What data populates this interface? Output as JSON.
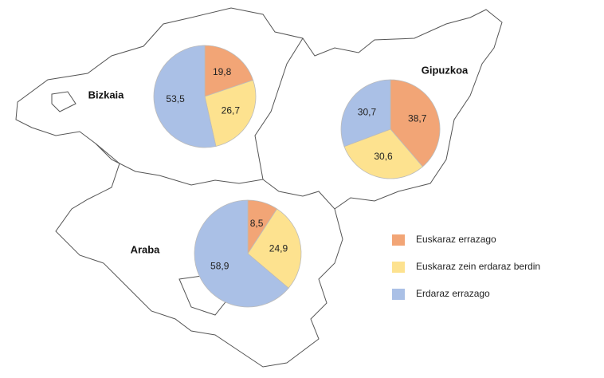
{
  "chart_data": [
    {
      "type": "pie",
      "title": "Bizkaia",
      "categories": [
        "Euskaraz errazago",
        "Euskaraz zein erdaraz berdin",
        "Erdaraz errazago"
      ],
      "values": [
        19.8,
        26.7,
        53.5
      ],
      "value_labels": [
        "19,8",
        "26,7",
        "53,5"
      ],
      "colors": [
        "#f2a576",
        "#fde28f",
        "#aac0e6"
      ]
    },
    {
      "type": "pie",
      "title": "Gipuzkoa",
      "categories": [
        "Euskaraz errazago",
        "Euskaraz zein erdaraz berdin",
        "Erdaraz errazago"
      ],
      "values": [
        38.7,
        30.6,
        30.7
      ],
      "value_labels": [
        "38,7",
        "30,6",
        "30,7"
      ],
      "colors": [
        "#f2a576",
        "#fde28f",
        "#aac0e6"
      ]
    },
    {
      "type": "pie",
      "title": "Araba",
      "categories": [
        "Euskaraz errazago",
        "Euskaraz zein erdaraz berdin",
        "Erdaraz errazago"
      ],
      "values": [
        8.5,
        24.9,
        58.9
      ],
      "value_labels": [
        "8,5",
        "24,9",
        "58,9"
      ],
      "colors": [
        "#f2a576",
        "#fde28f",
        "#aac0e6"
      ]
    }
  ]
}
